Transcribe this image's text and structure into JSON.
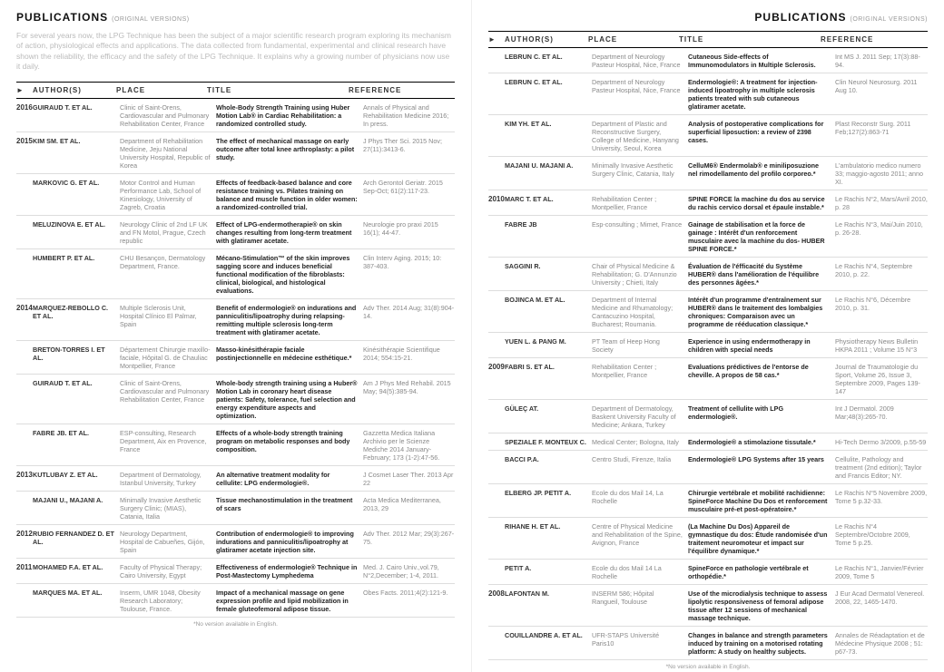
{
  "header": {
    "title": "PUBLICATIONS",
    "subtitle": "(ORIGINAL VERSIONS)"
  },
  "columns": {
    "authors": "AUTHOR(S)",
    "place": "PLACE",
    "title": "TITLE",
    "reference": "REFERENCE"
  },
  "arrow": "►",
  "intro": "For several years now, the LPG Technique has been the subject of a major scientific research program exploring its mechanism of action, physiological effects and applications. The data collected from fundamental, experimental and clinical research have shown the reliability, the efficacy and the safety of the LPG Technique. It explains why a growing number of physicians now use it daily.",
  "footnote": "*No version available in English.",
  "left": [
    {
      "year": "2016",
      "authors": "GUIRAUD T. ET AL.",
      "place": "Clinic of Saint-Orens, Cardiovascular and Pulmonary Rehabilitation Center, France",
      "title": "Whole-Body Strength Training using Huber Motion Lab® in Cardiac Rehabilitation: a randomized controlled study.",
      "ref": "Annals of Physical and Rehabilitation Medicine 2016; In press."
    },
    {
      "year": "2015",
      "authors": "KIM SM. ET AL.",
      "place": "Department of Rehabilitation Medicine, Jeju National University Hospital, Republic of Korea",
      "title": "The effect of mechanical massage on early outcome after total knee arthroplasty: a pilot study.",
      "ref": "J Phys Ther Sci. 2015 Nov; 27(11):3413-6."
    },
    {
      "year": "",
      "authors": "MARKOVIC G. ET AL.",
      "place": "Motor Control and Human Performance Lab, School of Kinesiology, University of Zagreb, Croatia",
      "title": "Effects of feedback-based balance and core resistance training vs. Pilates training on balance and muscle function in older women: a randomized-controlled trial.",
      "ref": "Arch Gerontol Geriatr. 2015 Sep-Oct; 61(2):117-23."
    },
    {
      "year": "",
      "authors": "MELUZINOVA E. ET AL.",
      "place": "Neurology Clinic of 2nd LF UK and FN Motol, Prague, Czech republic",
      "title": "Effect of LPG-endermotherapie® on skin changes resulting from long-term treatment with glatiramer acetate.",
      "ref": "Neurologie pro praxi 2015 16(1); 44-47."
    },
    {
      "year": "",
      "authors": "HUMBERT P. ET AL.",
      "place": "CHU Besançon, Dermatology Department, France.",
      "title": "Mécano-Stimulation™ of the skin improves sagging score and induces beneficial functional modification of the fibroblasts: clinical, biological, and histological evaluations.",
      "ref": "Clin Interv Aging. 2015; 10: 387-403."
    },
    {
      "year": "2014",
      "authors": "MARQUEZ-REBOLLO C. ET AL.",
      "place": "Multiple Sclerosis Unit, Hospital Clínico El Palmar, Spain",
      "title": "Benefit of endermologie® on indurations and panniculitis/lipoatrophy during relapsing-remitting multiple sclerosis long-term treatment with glatiramer acetate.",
      "ref": "Adv Ther. 2014 Aug; 31(8):904-14."
    },
    {
      "year": "",
      "authors": "BRETON-TORRES I. ET AL.",
      "place": "Département Chirurgie maxillo-faciale, Hôpital G. de Chauliac Montpellier, France",
      "title": "Masso-kinésithérapie faciale postinjectionnelle en médecine esthétique.*",
      "ref": "Kinésithérapie Scientifique 2014; 554:15-21."
    },
    {
      "year": "",
      "authors": "GUIRAUD T. ET AL.",
      "place": "Clinic of Saint-Orens, Cardiovascular and Pulmonary Rehabilitation Center, France",
      "title": "Whole-body strength training using a Huber® Motion Lab in coronary heart disease patients: Safety, tolerance, fuel selection and energy expenditure aspects and optimization.",
      "ref": "Am J Phys Med Rehabil. 2015 May; 94(5):385-94."
    },
    {
      "year": "",
      "authors": "FABRE JB. ET AL.",
      "place": "ESP-consulting, Research Department, Aix en Provence, France",
      "title": "Effects of a whole-body strength training program on metabolic responses and body composition.",
      "ref": "Gazzetta Medica Italiana Archivio per le Scienze Mediche 2014 January-February; 173 (1-2):47-56."
    },
    {
      "year": "2013",
      "authors": "KUTLUBAY Z. ET AL.",
      "place": "Department of Dermatology, Istanbul University, Turkey",
      "title": "An alternative treatment modality for cellulite: LPG endermologie®.",
      "ref": "J Cosmet Laser Ther. 2013 Apr 22"
    },
    {
      "year": "",
      "authors": "MAJANI U., MAJANI A.",
      "place": "Minimally Invasive Aesthetic Surgery Clinic; (MIAS), Catania, Italia",
      "title": "Tissue mechanostimulation in the treatment of scars",
      "ref": "Acta Medica Mediterranea, 2013, 29"
    },
    {
      "year": "2012",
      "authors": "RUBIO FERNANDEZ D. ET AL.",
      "place": "Neurology Department, Hospital de Cabueñes, Gijón, Spain",
      "title": "Contribution of endermologie® to improving indurations and panniculitis/lipoatrophy at glatiramer acetate injection site.",
      "ref": "Adv Ther. 2012 Mar; 29(3):267-75."
    },
    {
      "year": "2011",
      "authors": "MOHAMED F.A. ET AL.",
      "place": "Faculty of Physical Therapy; Cairo University, Egypt",
      "title": "Effectiveness of endermologie® Technique in Post-Mastectomy Lymphedema",
      "ref": "Med. J. Cairo Univ.,vol.79, N°2,December; 1-4, 2011."
    },
    {
      "year": "",
      "authors": "MARQUES MA. ET AL.",
      "place": "Inserm, UMR 1048, Obesity Research Laboratory; Toulouse, France.",
      "title": "Impact of a mechanical massage on gene expression profile and lipid mobilization in female gluteofemoral adipose tissue.",
      "ref": "Obes Facts. 2011;4(2):121-9."
    }
  ],
  "right": [
    {
      "year": "",
      "authors": "LEBRUN C. ET AL.",
      "place": "Department of Neurology Pasteur Hospital, Nice, France",
      "title": "Cutaneous Side-effects of Immunomodulators in Multiple Sclerosis.",
      "ref": "Int MS J. 2011 Sep; 17(3):88-94."
    },
    {
      "year": "",
      "authors": "LEBRUN C. ET AL.",
      "place": "Department of Neurology Pasteur Hospital, Nice, France",
      "title": "Endermologie®: A treatment for injection-induced lipoatrophy in multiple sclerosis patients treated with sub cutaneous glatiramer acetate.",
      "ref": "Clin Neurol Neurosurg. 2011 Aug 10."
    },
    {
      "year": "",
      "authors": "KIM YH. ET AL.",
      "place": "Department of Plastic and Reconstructive Surgery, College of Medicine, Hanyang University, Seoul, Korea",
      "title": "Analysis of postoperative complications for superficial liposuction: a review of 2398 cases.",
      "ref": "Plast Reconstr Surg. 2011 Feb;127(2):863-71"
    },
    {
      "year": "",
      "authors": "MAJANI U. MAJANI A.",
      "place": "Minimally Invasive Aesthetic Surgery Clinic, Catania, Italy",
      "title": "CelluM6® Endermolab® e miniliposuzione nel rimodellamento del profilo corporeo.*",
      "ref": "L'ambulatorio medico numero 33; maggio-agosto 2011; anno XI."
    },
    {
      "year": "2010",
      "authors": "MARC T. ET AL.",
      "place": "Rehabilitation Center ; Montpellier, France",
      "title": "SPINE FORCE la machine du dos au service du rachis cervico dorsal et épaule instable.*",
      "ref": "Le Rachis N°2, Mars/Avril 2010, p. 28"
    },
    {
      "year": "",
      "authors": "FABRE JB",
      "place": "Esp-consulting ; Mimet, France",
      "title": "Gainage de stabilisation et la force de gainage : Intérêt d'un renforcement musculaire avec la machine du dos- HUBER SPINE FORCE.*",
      "ref": "Le Rachis N°3, Mai/Juin 2010, p. 26-28."
    },
    {
      "year": "",
      "authors": "SAGGINI R.",
      "place": "Chair of Physical Medicine & Rehabilitation; G. D'Annunzio University ; Chieti, Italy",
      "title": "Évaluation de l'éfficacité du Système HUBER® dans l'amélioration de l'équilibre des personnes âgées.*",
      "ref": "Le Rachis N°4, Septembre 2010, p. 22."
    },
    {
      "year": "",
      "authors": "BOJINCA M. ET AL.",
      "place": "Department of Internal Medicine and Rhumatology; Cantacuzino Hospital, Bucharest; Roumania.",
      "title": "Intérêt d'un programme d'entraînement sur HUBER® dans le traitement des lombalgies chroniques: Comparaison avec un programme de rééducation classique.*",
      "ref": "Le Rachis N°6, Décembre 2010, p. 31."
    },
    {
      "year": "",
      "authors": "YUEN L. & PANG M.",
      "place": "PT Team of Heep Hong Society",
      "title": "Experience in using endermotherapy in children with special needs",
      "ref": "Physiotherapy News Bulletin HKPA 2011 ; Volume 15 N°3"
    },
    {
      "year": "2009",
      "authors": "FABRI S. ET AL.",
      "place": "Rehabilitation Center ; Montpellier, France",
      "title": "Evaluations prédictives de l'entorse de cheville. A propos de 58 cas.*",
      "ref": "Journal de Traumatologie du Sport, Volume 26, Issue 3, Septembre 2009, Pages 139-147"
    },
    {
      "year": "",
      "authors": "GÜLEÇ AT.",
      "place": "Department of Dermatology, Baskent University Faculty of Medicine; Ankara, Turkey",
      "title": "Treatment of cellulite with LPG endermologie®.",
      "ref": "Int J Dermatol. 2009 Mar;48(3):265-70."
    },
    {
      "year": "",
      "authors": "SPEZIALE F. MONTEUX C.",
      "place": "Medical Center; Bologna, Italy",
      "title": "Endermologie® a stimolazione tissutale.*",
      "ref": "Hi-Tech Dermo 3/2009, p.55-59"
    },
    {
      "year": "",
      "authors": "BACCI P.A.",
      "place": "Centro Studi, Firenze, Italia",
      "title": "Endermologie® LPG Systems after 15 years",
      "ref": "Cellulite, Pathology and treatment (2nd edition); Taylor and Francis Editor; NY."
    },
    {
      "year": "",
      "authors": "ELBERG JP. PETIT A.",
      "place": "Ecole du dos Mail 14, La Rochelle",
      "title": "Chirurgie vertébrale et mobilité rachidienne: SpineForce Machine Du Dos et renforcement musculaire pré-et post-opératoire.*",
      "ref": "Le Rachis N°5 Novembre 2009, Tome 5 p.32-33."
    },
    {
      "year": "",
      "authors": "RIHANE H. ET AL.",
      "place": "Centre of Physical Medicine and Rehabilitation of the Spine, Avignon, France",
      "title": "(La Machine Du Dos) Appareil de gymnastique du dos: Étude randomisée d'un traitement neuromoteur et impact sur l'équilibre dynamique.*",
      "ref": "Le Rachis N°4 Septembre/Octobre 2009, Tome 5 p.25."
    },
    {
      "year": "",
      "authors": "PETIT A.",
      "place": "Ecole du dos Mail 14 La Rochelle",
      "title": "SpineForce en pathologie vertébrale et orthopédie.*",
      "ref": "Le Rachis N°1, Janvier/Février 2009, Tome 5"
    },
    {
      "year": "2008",
      "authors": "LAFONTAN M.",
      "place": "INSERM 586; Hôpital Rangueil, Toulouse",
      "title": "Use of the microdialysis technique to assess lipolytic responsiveness of femoral adipose tissue after 12 sessions of mechanical massage technique.",
      "ref": "J Eur Acad Dermatol Venereol. 2008, 22, 1465-1470."
    },
    {
      "year": "",
      "authors": "COUILLANDRE A. ET AL.",
      "place": "UFR-STAPS Université Paris10",
      "title": "Changes in balance and strength parameters induced by training on a motorised rotating platform: A study on healthy subjects.",
      "ref": "Annales de Réadaptation et de Médecine Physique 2008 ; 51: p67-73."
    }
  ]
}
